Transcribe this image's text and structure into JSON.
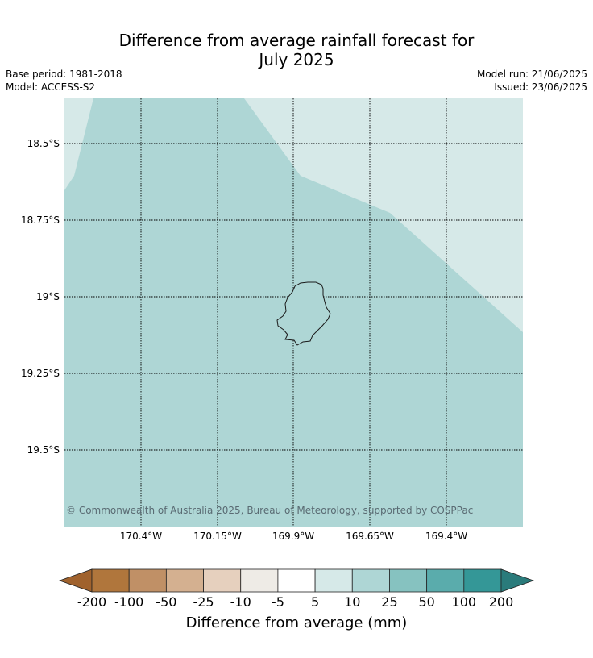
{
  "title_line1": "Difference from average rainfall forecast for",
  "title_line2": "July 2025",
  "base_period": "Base period: 1981-2018",
  "model": "Model: ACCESS-S2",
  "model_run": "Model run: 21/06/2025",
  "issued": "Issued: 23/06/2025",
  "lat_labels": [
    "18.5°S",
    "18.75°S",
    "19°S",
    "19.25°S",
    "19.5°S"
  ],
  "lon_labels": [
    "170.4°W",
    "170.15°W",
    "169.9°W",
    "169.65°W",
    "169.4°W"
  ],
  "copyright": "© Commonwealth of Australia 2025, Bureau of Meteorology, supported by COSPPac",
  "colorbar": {
    "label": "Difference from average (mm)",
    "ticks": [
      "-200",
      "-100",
      "-50",
      "-25",
      "-10",
      "-5",
      "5",
      "10",
      "25",
      "50",
      "100",
      "200"
    ],
    "colors": [
      "#a0622d",
      "#b0763c",
      "#c09066",
      "#d4b090",
      "#e6d0be",
      "#eeebe6",
      "#ffffff",
      "#d6e9e8",
      "#aed6d5",
      "#86c2c0",
      "#5aacac",
      "#349797",
      "#2a7b7b"
    ]
  },
  "map_fill": {
    "region_10_25_color": "#aed6d5",
    "region_5_10_color": "#d6e9e8"
  }
}
